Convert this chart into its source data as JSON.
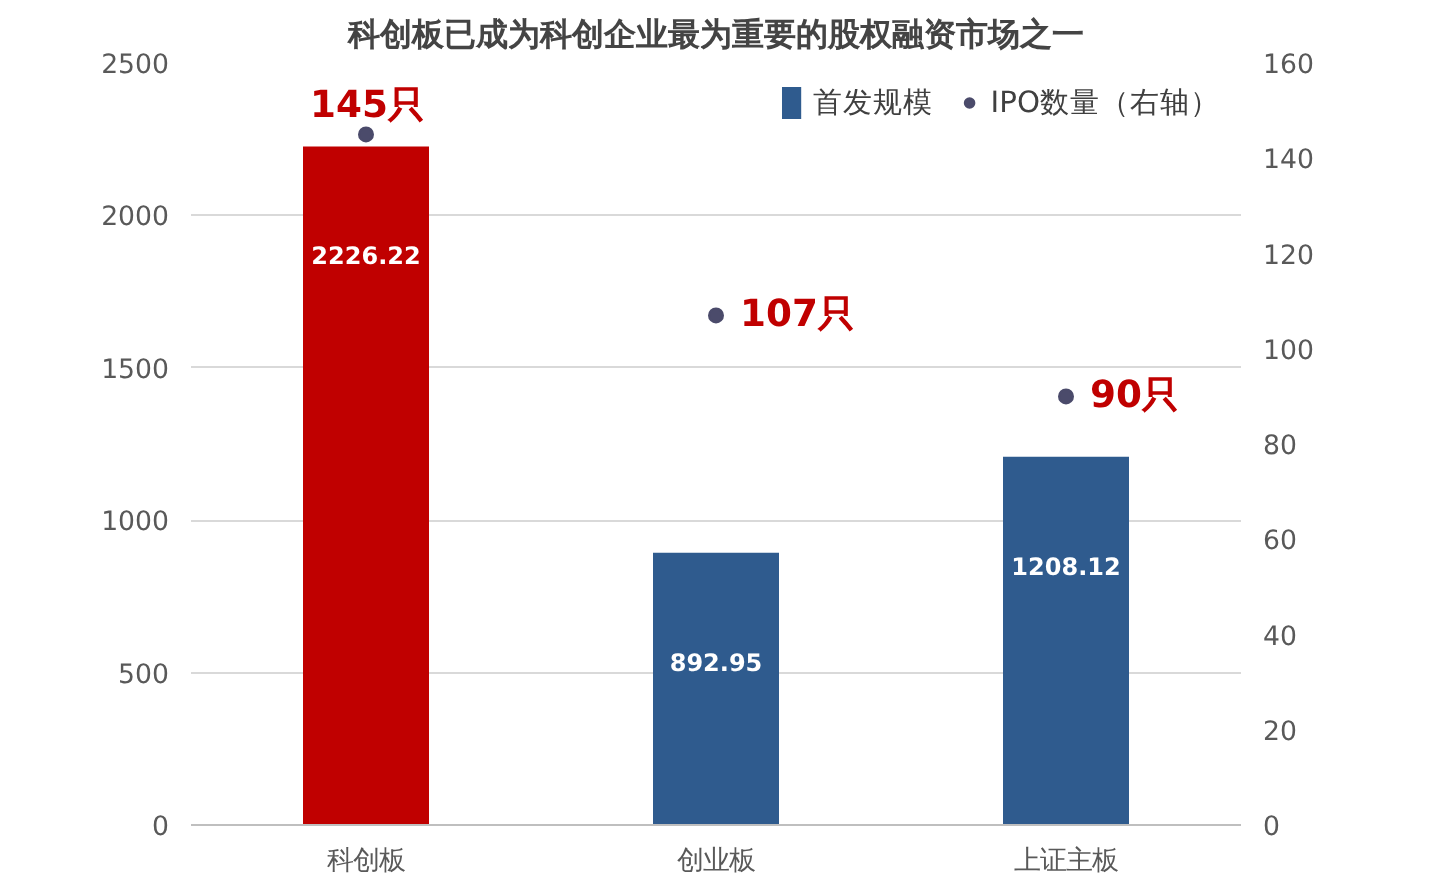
{
  "chart_data": {
    "type": "bar",
    "title": "科创板已成为科创企业最为重要的股权融资市场之一",
    "categories": [
      "科创板",
      "创业板",
      "上证主板"
    ],
    "series": [
      {
        "name": "首发规模",
        "color": "#2f5b8e",
        "colors": [
          "#c00000",
          "#2f5b8e",
          "#2f5b8e"
        ],
        "values": [
          2226.22,
          892.95,
          1208.12
        ],
        "value_labels": [
          "2226.22",
          "892.95",
          "1208.12"
        ]
      },
      {
        "name": "IPO数量（右轴）",
        "type": "scatter",
        "axis": "y2",
        "color": "#4b4b6b",
        "marker": "circle",
        "values": [
          145,
          107,
          90
        ],
        "value_labels": [
          "145只",
          "107只",
          "90只"
        ]
      }
    ],
    "ylim": [
      0,
      2500
    ],
    "yticks": [
      0,
      500,
      1000,
      1500,
      2000,
      2500
    ],
    "y2lim": [
      0,
      160
    ],
    "y2ticks": [
      0,
      20,
      40,
      60,
      80,
      100,
      120,
      140,
      160
    ],
    "grid": "y",
    "legend": "top right"
  }
}
